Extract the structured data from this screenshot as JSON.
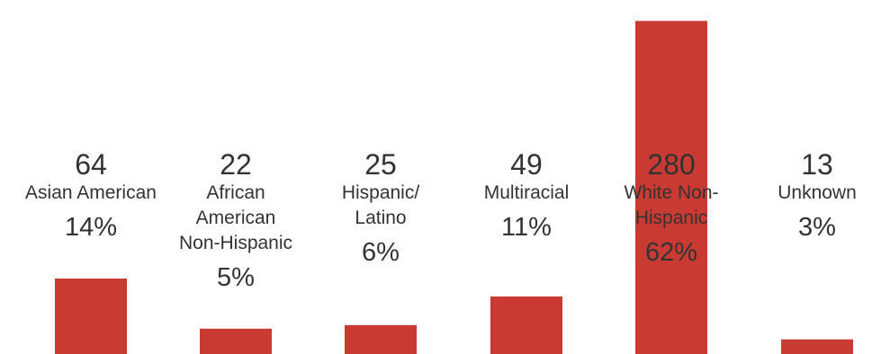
{
  "chart_data": {
    "type": "bar",
    "categories": [
      "Asian American",
      "African American Non-Hispanic",
      "Hispanic/ Latino",
      "Multiracial",
      "White Non-Hispanic",
      "Unknown"
    ],
    "label_lines": [
      [
        "Asian American"
      ],
      [
        "African",
        "American",
        "Non-Hispanic"
      ],
      [
        "Hispanic/",
        "Latino"
      ],
      [
        "Multiracial"
      ],
      [
        "White Non-",
        "Hispanic"
      ],
      [
        "Unknown"
      ]
    ],
    "values": [
      64,
      22,
      25,
      49,
      280,
      13
    ],
    "value_labels": [
      "64",
      "22",
      "25",
      "49",
      "280",
      "13"
    ],
    "percent_labels": [
      "14%",
      "5%",
      "6%",
      "11%",
      "62%",
      "3%"
    ],
    "ylim": [
      0,
      290
    ],
    "grid": false,
    "legend": "none",
    "bar_color": "#c83a32",
    "text_color": "#333333",
    "axis_color": "#333333"
  }
}
